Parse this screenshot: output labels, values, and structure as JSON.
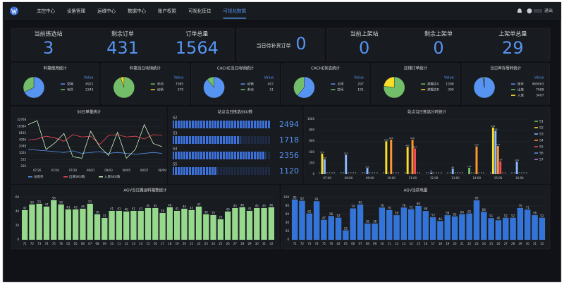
{
  "nav": {
    "items": [
      "主控中心",
      "设备管理",
      "运维中心",
      "数据中心",
      "账户权限",
      "可视化库位",
      "可视化数据"
    ],
    "active": 6,
    "logout": "退出"
  },
  "stats": [
    {
      "label": "当前拣选站",
      "value": 3
    },
    {
      "label": "剩余订单",
      "value": 431
    },
    {
      "label": "订单总量",
      "value": 1564
    },
    {
      "label": "当日待补货订单",
      "value": 0
    },
    {
      "label": "当前上架站",
      "value": 0
    },
    {
      "label": "剩余上架单",
      "value": 0
    },
    {
      "label": "上架单总量",
      "value": 29
    }
  ],
  "chart_data": [
    {
      "type": "pie",
      "title": "料箱使用统计",
      "legend_header": "Value",
      "categories": [
        "空箱",
        "有货"
      ],
      "values": [
        4921,
        2343
      ],
      "colors": [
        "#5794f2",
        "#73bf69"
      ]
    },
    {
      "type": "pie",
      "title": "料箱当日动销统计",
      "legend_header": "Value",
      "categories": [
        "未动",
        "动销"
      ],
      "values": [
        7085,
        379
      ],
      "colors": [
        "#73bf69",
        "#fade2a"
      ]
    },
    {
      "type": "pie",
      "title": "CACHE当日动销统计",
      "legend_header": "Value",
      "categories": [
        "动销",
        "未动"
      ],
      "values": [
        407,
        51
      ],
      "colors": [
        "#5794f2",
        "#73bf69"
      ]
    },
    {
      "type": "pie",
      "title": "CACHE状态统计",
      "legend_header": "Value",
      "categories": [
        "占用",
        "空闲"
      ],
      "values": [
        297,
        191
      ],
      "colors": [
        "#5794f2",
        "#73bf69"
      ]
    },
    {
      "type": "pie",
      "title": "店铺订单统计",
      "legend_header": "Value",
      "categories": [
        "旗舰店A",
        "旗舰店B"
      ],
      "values": [
        1288,
        390
      ],
      "colors": [
        "#73bf69",
        "#fade2a"
      ]
    },
    {
      "type": "pie",
      "title": "当日库存周转统计",
      "legend_header": "Value",
      "categories": [
        "库存",
        "出库",
        "入库"
      ],
      "values": [
        469463,
        7688,
        3407
      ],
      "colors": [
        "#5794f2",
        "#73bf69",
        "#fade2a"
      ]
    },
    {
      "type": "line",
      "title": "30日单量统计",
      "log_scale": true,
      "grid": true,
      "categories": [
        null,
        "07/26",
        null,
        "07/28",
        null,
        "07/30",
        null,
        "08/01",
        null,
        "08/03",
        null,
        "08/05",
        null,
        "08/07",
        null,
        "08/09"
      ],
      "ylim": [
        256,
        32768
      ],
      "yticks": [
        256,
        512,
        1024,
        2048,
        4096,
        8192,
        16384,
        32768
      ],
      "series": [
        {
          "name": "总拣单",
          "color": "#5794f2",
          "values": [
            1500,
            1400,
            1300,
            1200,
            1100,
            1300,
            1000,
            1100,
            1200,
            1000,
            1100,
            1000,
            900,
            1000,
            1100,
            1000
          ]
        },
        {
          "name": "出库SKU数",
          "color": "#f2495c",
          "values": [
            4000,
            4500,
            6000,
            5000,
            3500,
            7000,
            5500,
            6000,
            2500,
            6500,
            7000,
            5500,
            6000,
            4500,
            7000,
            6500
          ]
        },
        {
          "name": "入库SKU数",
          "color": "#c8f2c2",
          "values": [
            20000,
            30000,
            1500,
            3000,
            8000,
            700,
            600,
            10000,
            2000,
            800,
            9000,
            600,
            1500,
            20000,
            2800,
            2000
          ]
        }
      ]
    },
    {
      "type": "progress",
      "title": "站点当日拣选SKU数",
      "categories": [
        "S2",
        "S3",
        "S4",
        "S5"
      ],
      "values": [
        2494,
        1718,
        2356,
        1120
      ],
      "color": "#3d71d9"
    },
    {
      "type": "bar",
      "title": "站点当日拣选分时统计",
      "grid": true,
      "categories": [
        "07:00",
        "08:00",
        "09:00",
        "10:00",
        "11:00",
        "12:00",
        "13:00",
        "14:00",
        "15:00",
        "16:00"
      ],
      "ylim": [
        0,
        1000
      ],
      "yticks": [
        0,
        200,
        400,
        600,
        800,
        1000
      ],
      "series": [
        {
          "name": "S1",
          "color": "#73bf69",
          "values": [
            0,
            0,
            0,
            0,
            0,
            0,
            0,
            116,
            0,
            0
          ]
        },
        {
          "name": "S2",
          "color": "#fade2a",
          "values": [
            375,
            0,
            0,
            598,
            495,
            0,
            0,
            0,
            848,
            0
          ]
        },
        {
          "name": "S3",
          "color": "#8ab8ff",
          "values": [
            270,
            352,
            112,
            0,
            0,
            31,
            98,
            0,
            788,
            229
          ]
        },
        {
          "name": "S4",
          "color": "#ff9830",
          "values": [
            0,
            0,
            0,
            628,
            626,
            0,
            0,
            504,
            512,
            0
          ]
        },
        {
          "name": "S5",
          "color": "#f2495c",
          "values": [
            0,
            0,
            0,
            0,
            467,
            0,
            0,
            0,
            234,
            0
          ]
        },
        {
          "name": "S6",
          "color": "#5794f2",
          "values": [
            0,
            0,
            0,
            0,
            0,
            0,
            0,
            0,
            0,
            0
          ]
        },
        {
          "name": "S7",
          "color": "#b877d9",
          "values": [
            0,
            0,
            0,
            0,
            0,
            0,
            0,
            0,
            0,
            0
          ]
        }
      ]
    },
    {
      "type": "bar",
      "title": "AGV当日搬运料箱数统计",
      "grid": true,
      "color": "#96d98d",
      "categories": [
        "71",
        "72",
        "73",
        "74",
        "75",
        "76",
        "02",
        "05",
        "06",
        "07",
        "08",
        "09",
        "10",
        "11",
        "12",
        "13",
        "14",
        "15",
        "16",
        "17",
        "18",
        "19",
        "20",
        "21",
        "22",
        "23",
        "24",
        "25",
        "26",
        "27",
        "28",
        "29",
        "30",
        "31",
        "32"
      ],
      "values": [
        42,
        50,
        51,
        47,
        56,
        50,
        43,
        43,
        44,
        51,
        36,
        31,
        41,
        41,
        40,
        41,
        41,
        45,
        45,
        38,
        46,
        41,
        44,
        42,
        47,
        36,
        35,
        29,
        40,
        45,
        46,
        41,
        45,
        45,
        46
      ],
      "ylim": [
        0,
        60
      ],
      "yticks": [
        0,
        20,
        40,
        60
      ]
    },
    {
      "type": "bar",
      "title": "AGV当前电量",
      "grid": true,
      "color": "#3274d9",
      "categories": [
        "71",
        "72",
        "73",
        "74",
        "75",
        "76",
        "02",
        "05",
        "06",
        "07",
        "08",
        "09",
        "10",
        "11",
        "12",
        "13",
        "14",
        "15",
        "16",
        "17",
        "18",
        "19",
        "20",
        "21",
        "22",
        "23",
        "24",
        "25",
        "26",
        "27",
        "28",
        "29",
        "30",
        "31",
        "32"
      ],
      "values": [
        95,
        92,
        62,
        91,
        47,
        56,
        52,
        22,
        74,
        83,
        38,
        38,
        76,
        70,
        58,
        76,
        72,
        80,
        68,
        53,
        44,
        58,
        55,
        60,
        62,
        93,
        66,
        51,
        46,
        52,
        52,
        75,
        71,
        58,
        52
      ],
      "ylim": [
        0,
        100
      ],
      "yticks": [
        0,
        20,
        40,
        60,
        80,
        100
      ]
    }
  ]
}
